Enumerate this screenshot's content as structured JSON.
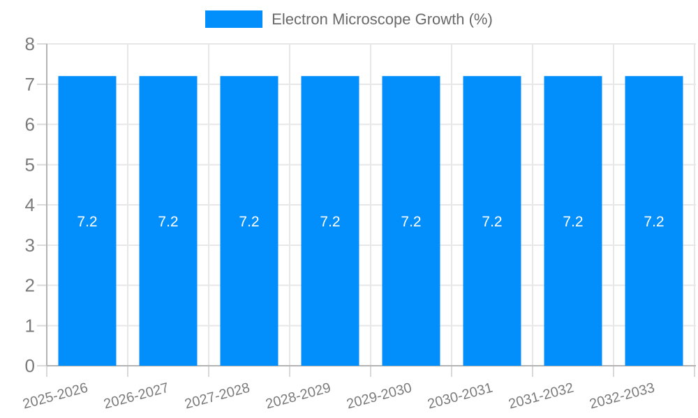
{
  "chart_data": {
    "type": "bar",
    "title": "",
    "categories": [
      "2025-2026",
      "2026-2027",
      "2027-2028",
      "2028-2029",
      "2029-2030",
      "2030-2031",
      "2031-2032",
      "2032-2033"
    ],
    "series": [
      {
        "name": "Electron Microscope Growth (%)",
        "values": [
          7.2,
          7.2,
          7.2,
          7.2,
          7.2,
          7.2,
          7.2,
          7.2
        ]
      }
    ],
    "value_labels": [
      "7.2",
      "7.2",
      "7.2",
      "7.2",
      "7.2",
      "7.2",
      "7.2",
      "7.2"
    ],
    "xlabel": "",
    "ylabel": "",
    "ylim": [
      0,
      8
    ],
    "ytick_step": 1,
    "ytick_labels": [
      "0",
      "1",
      "2",
      "3",
      "4",
      "5",
      "6",
      "7",
      "8"
    ],
    "grid": true,
    "legend_position": "top",
    "x_label_rotation_deg": -15
  },
  "legend": {
    "label": "Electron Microscope Growth (%)"
  },
  "colors": {
    "background": "#ffffff",
    "bar": "#038FFB",
    "grid": "#e7e7e7",
    "axis": "#b3b3b3",
    "tick": "#d9d9d9",
    "axis_label": "#7b7b7b",
    "legend_text": "#696969",
    "value_label": "#ffffff"
  }
}
